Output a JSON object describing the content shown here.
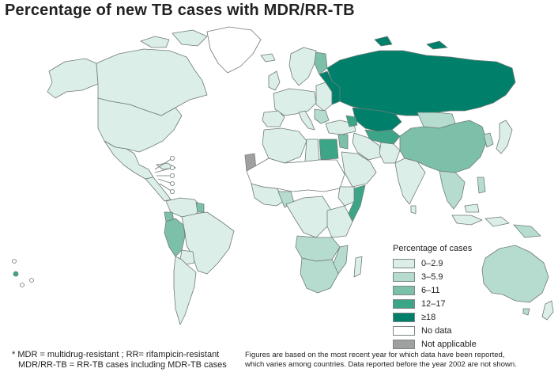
{
  "title": "Percentage of new TB cases with MDR/RR-TB",
  "colors": {
    "range_0_2_9": "#dceee8",
    "range_3_5_9": "#b6dccf",
    "range_6_11": "#7cc0aa",
    "range_12_17": "#3da587",
    "range_18_plus": "#00806a",
    "no_data": "#ffffff",
    "not_applicable": "#a0a0a0"
  },
  "legend": {
    "title": "Percentage of cases",
    "items": [
      {
        "label": "0–2.9",
        "color": "#dceee8"
      },
      {
        "label": "3–5.9",
        "color": "#b6dccf"
      },
      {
        "label": "6–11",
        "color": "#7cc0aa"
      },
      {
        "label": "12–17",
        "color": "#3da587"
      },
      {
        "label": "≥18",
        "color": "#00806a"
      },
      {
        "label": "No data",
        "color": "#ffffff"
      },
      {
        "label": "Not applicable",
        "color": "#a0a0a0"
      }
    ]
  },
  "footnotes": {
    "abbrev_line1": "* MDR = multidrug-resistant ; RR= rifampicin-resistant",
    "abbrev_line2": "MDR/RR-TB = RR-TB cases including MDR-TB cases",
    "source_line1": "Figures are based on the most recent year for which data have been reported,",
    "source_line2": "which varies among countries. Data reported before the year 2002 are not shown."
  }
}
